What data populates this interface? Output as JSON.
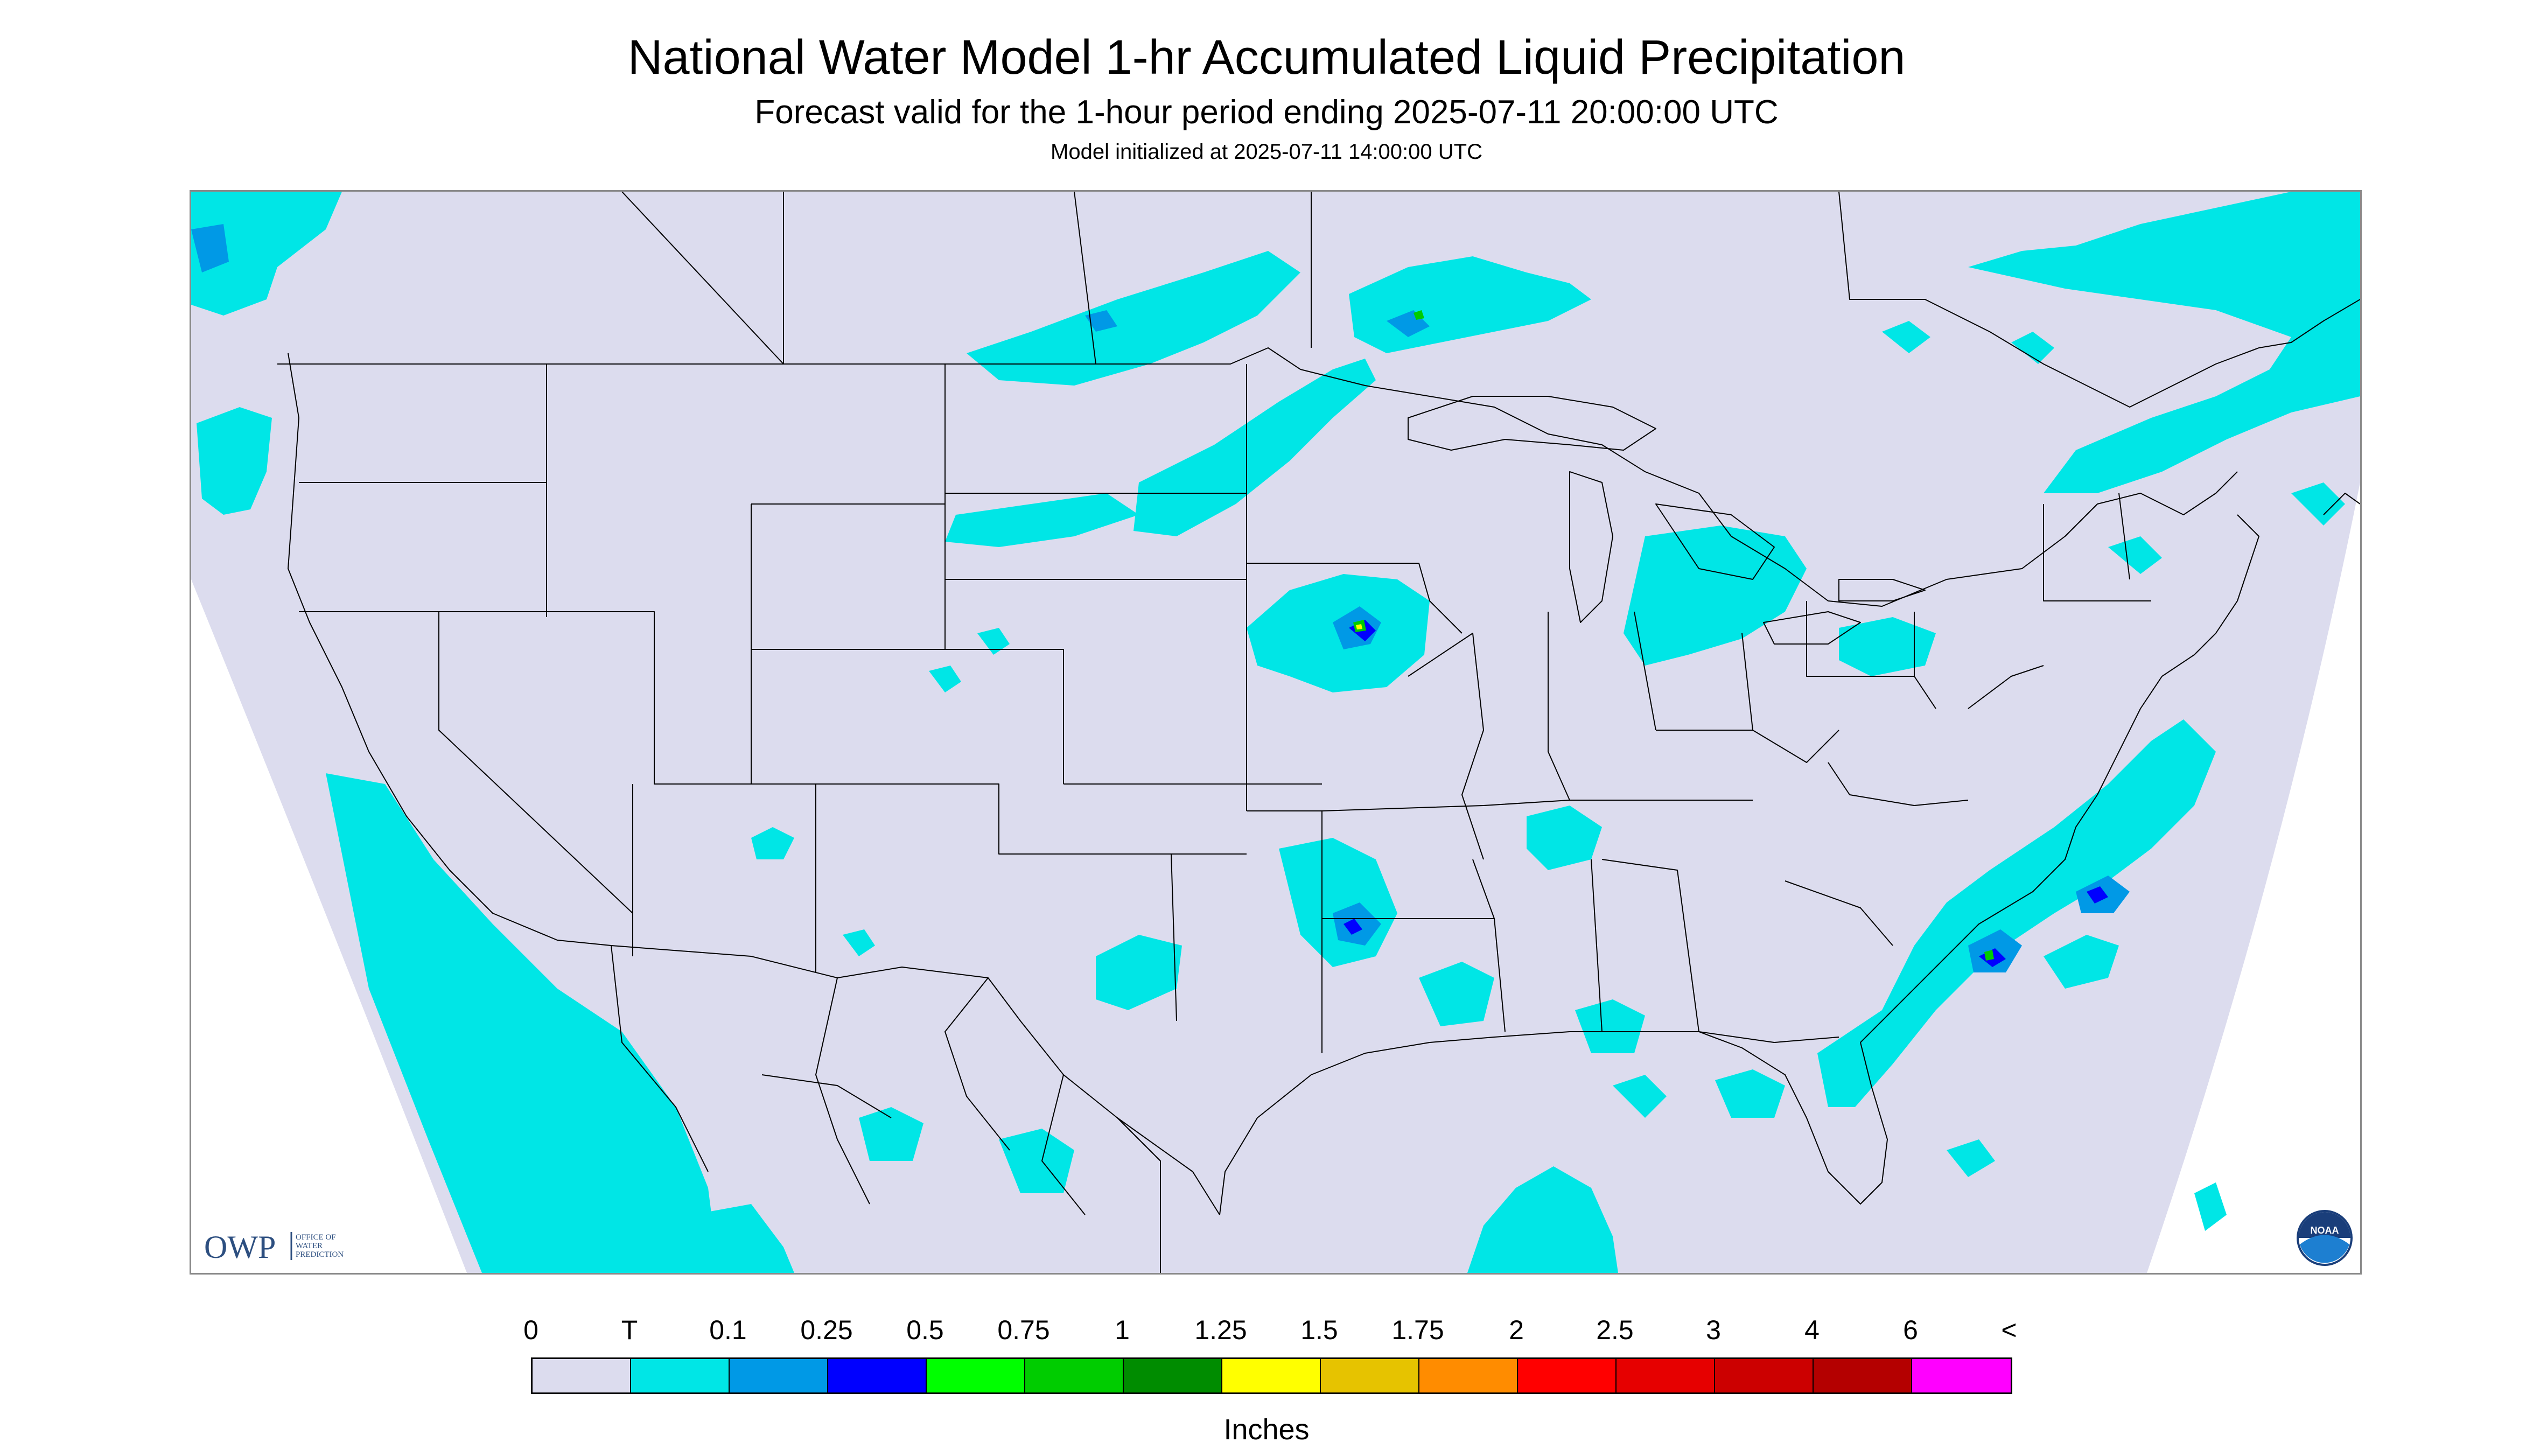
{
  "header": {
    "title": "National Water Model 1-hr Accumulated Liquid Precipitation",
    "subtitle": "Forecast valid for the 1-hour period ending 2025-07-11 20:00:00 UTC",
    "initialized": "Model initialized at 2025-07-11 14:00:00 UTC"
  },
  "map": {
    "region": "Continental United States",
    "background_color": "#dcdcee",
    "boundary_color": "#000000",
    "precip_colors": {
      "trace": "#00e6e6",
      "light": "#0099e6",
      "moderate": "#0000ff",
      "heavy": "#00cc00",
      "very_heavy": "#ffff00"
    }
  },
  "logos": {
    "owp_text": "OWP",
    "owp_subtext": "OFFICE OF WATER PREDICTION",
    "noaa_text": "NOAA"
  },
  "legend": {
    "labels": [
      "0",
      "T",
      "0.1",
      "0.25",
      "0.5",
      "0.75",
      "1",
      "1.25",
      "1.5",
      "1.75",
      "2",
      "2.5",
      "3",
      "4",
      "6",
      "<"
    ],
    "colors": [
      "#dcdcee",
      "#00e6e6",
      "#0099e6",
      "#0000ff",
      "#00ff00",
      "#00cc00",
      "#008c00",
      "#ffff00",
      "#e6c300",
      "#ff8c00",
      "#ff0000",
      "#e60000",
      "#cc0000",
      "#b40000",
      "#ff00ff",
      "#9955cc"
    ],
    "unit": "Inches"
  }
}
